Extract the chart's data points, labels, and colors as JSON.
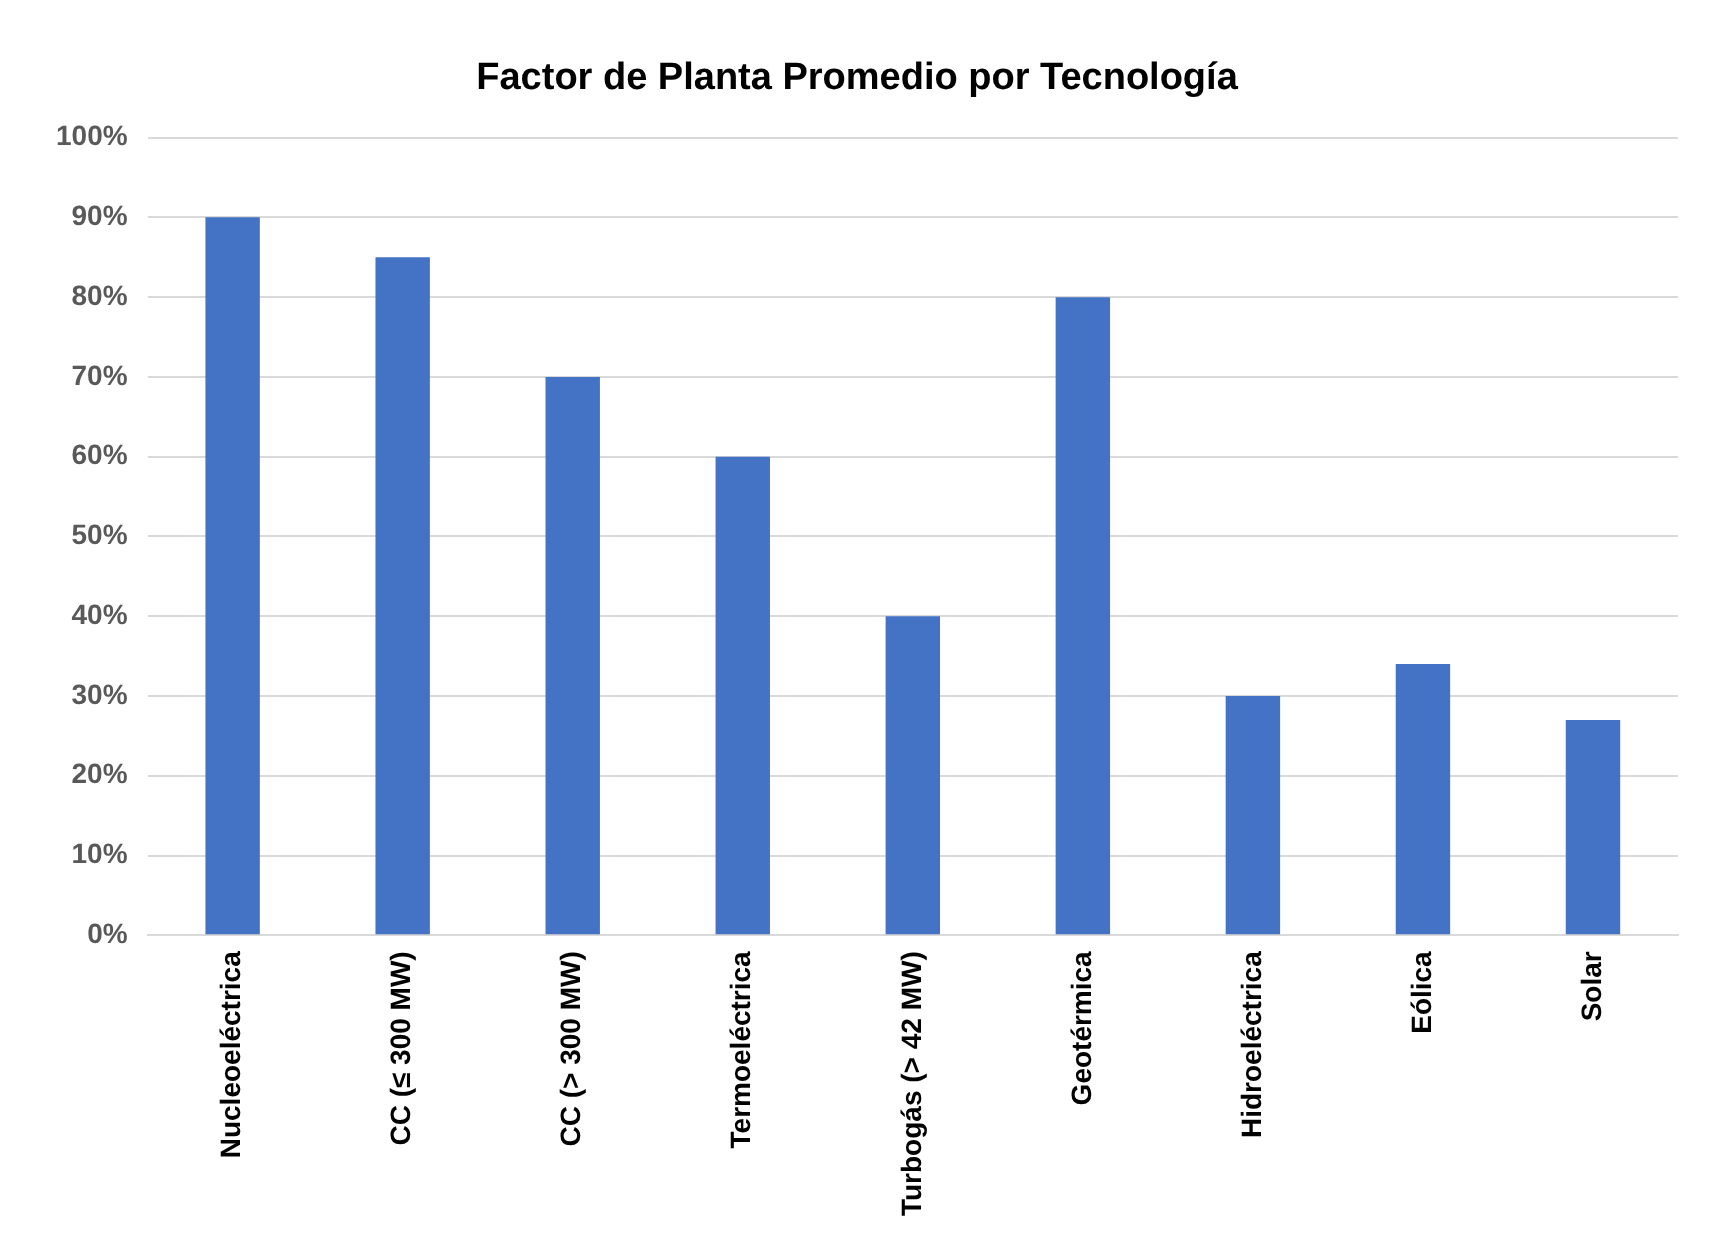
{
  "chart_data": {
    "type": "bar",
    "title": "Factor de Planta Promedio por Tecnología",
    "categories": [
      "Nucleoeléctrica",
      "CC (≤ 300 MW)",
      "CC (> 300 MW)",
      "Termoeléctrica",
      "Turbogás (> 42 MW)",
      "Geotérmica",
      "Hidroeléctrica",
      "Eólica",
      "Solar"
    ],
    "values": [
      90,
      85,
      70,
      60,
      40,
      80,
      30,
      34,
      27
    ],
    "color": "#4472c4",
    "ylim": [
      0,
      100
    ],
    "yticks": [
      {
        "value": 0,
        "label": "0%"
      },
      {
        "value": 10,
        "label": "10%"
      },
      {
        "value": 20,
        "label": "20%"
      },
      {
        "value": 30,
        "label": "30%"
      },
      {
        "value": 40,
        "label": "40%"
      },
      {
        "value": 50,
        "label": "50%"
      },
      {
        "value": 60,
        "label": "60%"
      },
      {
        "value": 70,
        "label": "70%"
      },
      {
        "value": 80,
        "label": "80%"
      },
      {
        "value": 90,
        "label": "90%"
      },
      {
        "value": 100,
        "label": "100%"
      }
    ],
    "grid": "y",
    "legend": false
  }
}
